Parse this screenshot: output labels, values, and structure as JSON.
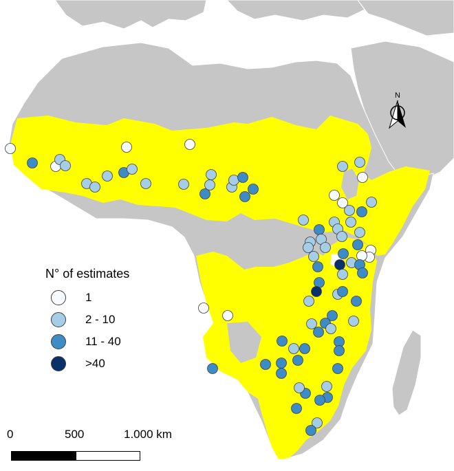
{
  "colors": {
    "sea": "#ffffff",
    "land": "#c6c6c6",
    "range": "#ffff00",
    "class_1": "#f7fbff",
    "class_2_10": "#a6cde6",
    "class_11_40": "#3e8cc6",
    "class_gt40": "#08306b"
  },
  "legend": {
    "title": "N° of estimates",
    "items": [
      {
        "label": "1",
        "color": "#f7fbff"
      },
      {
        "label": "2 - 10",
        "color": "#a6cde6"
      },
      {
        "label": "11 - 40",
        "color": "#3e8cc6"
      },
      {
        "label": ">40",
        "color": "#08306b"
      }
    ]
  },
  "scale_bar": {
    "labels": [
      "0",
      "500",
      "1.000 km"
    ]
  },
  "north_arrow": {
    "label": "N",
    "icon": "north-arrow-icon"
  },
  "map_data": {
    "type": "point-map",
    "classes": [
      "1",
      "2 - 10",
      "11 - 40",
      ">40"
    ],
    "points_per_class": {
      "1": 12,
      "2 - 10": 42,
      "11 - 40": 36,
      ">40": 2
    }
  }
}
